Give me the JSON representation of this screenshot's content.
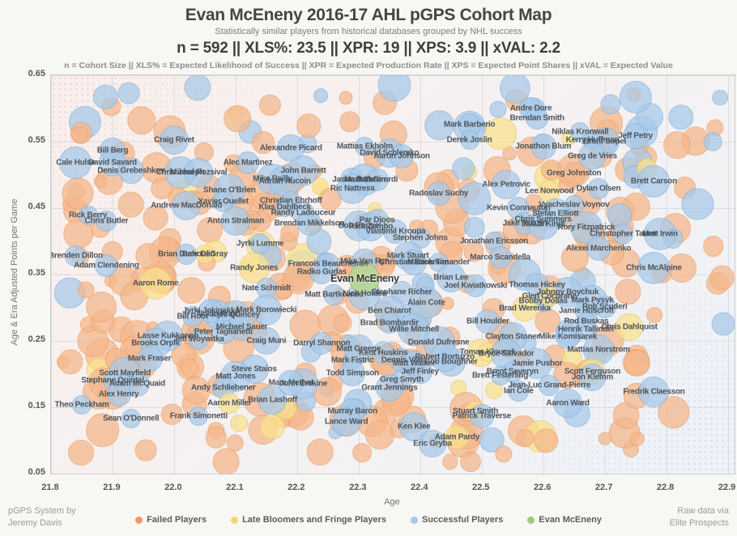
{
  "header": {
    "title": "Evan McEneny 2016-17 AHL pGPS Cohort Map",
    "subtitle": "Statistically similar players from historical databases grouped by NHL success",
    "stats_line": "n = 592   ||   XLS%: 23.5   ||   XPR: 19   ||   XPS: 3.9   ||   xVAL: 2.2",
    "definitions_line": "n = Cohort Size || XLS% = Expected Likelihood of Success || XPR = Expected Production Rate || XPS = Expected Point Shares || xVAL = Expected Value"
  },
  "footer": {
    "credit_left_line1": "pGPS System by",
    "credit_left_line2": "Jeremy Davis",
    "credit_right_line1": "Raw data via",
    "credit_right_line2": "Elite Prospects"
  },
  "legend": {
    "position": "bottom",
    "items": [
      {
        "label": "Failed Players",
        "color": "#f0976b",
        "group": "f"
      },
      {
        "label": "Late Bloomers and Fringe Players",
        "color": "#f2d578",
        "group": "l"
      },
      {
        "label": "Successful Players",
        "color": "#a9cae9",
        "group": "s"
      },
      {
        "label": "Evan McEneny",
        "color": "#9fc87c",
        "group": "e"
      }
    ]
  },
  "colors": {
    "page-bg": "#f7f7f4",
    "plot-border": "#cccccc",
    "grid-c": "#dcdcdc",
    "failed-fill": "#f5b88d",
    "failed-edge": "#eca267",
    "late-fill": "#fae290",
    "late-edge": "#ecca62",
    "success-fill": "#a9cae9",
    "success-edge": "#88b3da",
    "subject-fill": "#b7d795",
    "subject-edge": "#94bf6d",
    "label-c": "#4e555b",
    "title-c": "#454545",
    "subtitle-c": "#7d7d7d",
    "stats-c": "#3e3e3e",
    "defs-c": "#8d8d8d",
    "tick-c": "#555555",
    "axis-title-c": "#757575",
    "credit-c": "#9b9b9b",
    "legend-text-c": "#5b5b5b"
  },
  "chart_data": {
    "type": "scatter",
    "title": "Evan McEneny 2016-17 AHL pGPS Cohort Map",
    "xlabel": "Age",
    "ylabel": "Age & Era Adjusted Points per Game",
    "xlim": [
      21.8,
      22.9
    ],
    "ylim": [
      0.05,
      0.65
    ],
    "x_ticks": [
      "21.8",
      "21.9",
      "22.0",
      "22.1",
      "22.2",
      "22.3",
      "22.4",
      "22.5",
      "22.6",
      "22.7",
      "22.8",
      "22.9"
    ],
    "y_ticks": [
      "0.65",
      "0.55",
      "0.45",
      "0.35",
      "0.25",
      "0.15",
      "0.05"
    ],
    "grid": true,
    "cohort_size": 592,
    "subject": {
      "n": "Evan McEneny",
      "a": 22.31,
      "p": 0.344,
      "g": "e"
    },
    "background": {
      "seed": 1337,
      "count": 330
    },
    "players": [
      {
        "n": "Craig Rivet",
        "a": 22.0,
        "p": 0.552,
        "g": "s"
      },
      {
        "n": "Bill Berg",
        "a": 21.9,
        "p": 0.537,
        "g": "s"
      },
      {
        "n": "Cale Hulse",
        "a": 21.84,
        "p": 0.518,
        "g": "s"
      },
      {
        "n": "David Savard",
        "a": 21.9,
        "p": 0.518,
        "g": "s"
      },
      {
        "n": "Denis Grebeshkov",
        "a": 21.93,
        "p": 0.506,
        "g": "s"
      },
      {
        "n": "Chris Joseph",
        "a": 22.01,
        "p": 0.504,
        "g": "s"
      },
      {
        "n": "Michal Rozsival",
        "a": 22.04,
        "p": 0.504,
        "g": "s"
      },
      {
        "n": "Shane O'Brien",
        "a": 22.09,
        "p": 0.477,
        "g": "s"
      },
      {
        "n": "Andrew MacDonald",
        "a": 22.02,
        "p": 0.454,
        "g": "s"
      },
      {
        "n": "Alec Martinez",
        "a": 22.12,
        "p": 0.518,
        "g": "s"
      },
      {
        "n": "Alexandre Picard",
        "a": 22.19,
        "p": 0.54,
        "g": "s"
      },
      {
        "n": "Mattias Ekholm",
        "a": 22.31,
        "p": 0.543,
        "g": "s"
      },
      {
        "n": "David Schlemko",
        "a": 22.35,
        "p": 0.533,
        "g": "s"
      },
      {
        "n": "Aaron Johnson",
        "a": 22.37,
        "p": 0.528,
        "g": "s"
      },
      {
        "n": "Mark Barberio",
        "a": 22.48,
        "p": 0.576,
        "g": "s"
      },
      {
        "n": "Derek Joslin",
        "a": 22.48,
        "p": 0.552,
        "g": "s"
      },
      {
        "n": "John Barrett",
        "a": 22.21,
        "p": 0.506,
        "g": "s"
      },
      {
        "n": "Mike Reilly",
        "a": 22.16,
        "p": 0.494,
        "g": "s"
      },
      {
        "n": "Adrian Aucoin",
        "a": 22.18,
        "p": 0.49,
        "g": "s"
      },
      {
        "n": "Jason York",
        "a": 22.29,
        "p": 0.493,
        "g": "s"
      },
      {
        "n": "Mark Eaton",
        "a": 22.31,
        "p": 0.493,
        "g": "s"
      },
      {
        "n": "Dan Girardi",
        "a": 22.33,
        "p": 0.493,
        "g": "s"
      },
      {
        "n": "Ric Nattress",
        "a": 22.29,
        "p": 0.479,
        "g": "s"
      },
      {
        "n": "Radoslav Suchy",
        "a": 22.43,
        "p": 0.472,
        "g": "s"
      },
      {
        "n": "Christian Ehrhoff",
        "a": 22.19,
        "p": 0.461,
        "g": "s"
      },
      {
        "n": "Klas Dahlbeck",
        "a": 22.18,
        "p": 0.451,
        "g": "s"
      },
      {
        "n": "Xavier Ouellet",
        "a": 22.08,
        "p": 0.46,
        "g": "s"
      },
      {
        "n": "Niklas Kronwall",
        "a": 22.66,
        "p": 0.565,
        "g": "s"
      },
      {
        "n": "Jeff Petry",
        "a": 22.75,
        "p": 0.559,
        "g": "s"
      },
      {
        "n": "Kerry Huffman",
        "a": 22.68,
        "p": 0.552,
        "g": "s"
      },
      {
        "n": "Brent Sopel",
        "a": 22.7,
        "p": 0.55,
        "g": "s"
      },
      {
        "n": "Jonathon Blum",
        "a": 22.6,
        "p": 0.543,
        "g": "s"
      },
      {
        "n": "Greg de Vries",
        "a": 22.68,
        "p": 0.528,
        "g": "s"
      },
      {
        "n": "Greg Johnston",
        "a": 22.65,
        "p": 0.502,
        "g": "f"
      },
      {
        "n": "Brett Carson",
        "a": 22.78,
        "p": 0.49,
        "g": "s"
      },
      {
        "n": "Alex Petrovic",
        "a": 22.54,
        "p": 0.485,
        "g": "s"
      },
      {
        "n": "Lee Norwood",
        "a": 22.61,
        "p": 0.476,
        "g": "l"
      },
      {
        "n": "Dylan Olsen",
        "a": 22.69,
        "p": 0.479,
        "g": "s"
      },
      {
        "n": "Vyacheslav Voynov",
        "a": 22.65,
        "p": 0.455,
        "g": "s"
      },
      {
        "n": "Kevin Connauton",
        "a": 22.56,
        "p": 0.45,
        "g": "s"
      },
      {
        "n": "Andre Dore",
        "a": 22.58,
        "p": 0.6,
        "g": "s"
      },
      {
        "n": "Brendan Smith",
        "a": 22.59,
        "p": 0.585,
        "g": "s"
      },
      {
        "n": "Stefan Elliott",
        "a": 22.62,
        "p": 0.441,
        "g": "s"
      },
      {
        "n": "Chris Summers",
        "a": 22.6,
        "p": 0.433,
        "g": "s"
      },
      {
        "n": "Jake Muzzin",
        "a": 22.57,
        "p": 0.427,
        "g": "s"
      },
      {
        "n": "Jakub Kindl",
        "a": 22.6,
        "p": 0.426,
        "g": "s"
      },
      {
        "n": "Rory Fitzpatrick",
        "a": 22.67,
        "p": 0.421,
        "g": "s"
      },
      {
        "n": "Christopher Tanev",
        "a": 22.73,
        "p": 0.411,
        "g": "s"
      },
      {
        "n": "Matt Irwin",
        "a": 22.79,
        "p": 0.411,
        "g": "s"
      },
      {
        "n": "Alexei Marchenko",
        "a": 22.69,
        "p": 0.389,
        "g": "s"
      },
      {
        "n": "Chris McAlpine",
        "a": 22.78,
        "p": 0.36,
        "g": "s"
      },
      {
        "n": "Jonathan Ericsson",
        "a": 22.52,
        "p": 0.4,
        "g": "s"
      },
      {
        "n": "Marco Scandella",
        "a": 22.53,
        "p": 0.376,
        "g": "s"
      },
      {
        "n": "Rick Berry",
        "a": 21.86,
        "p": 0.439,
        "g": "s"
      },
      {
        "n": "Chris Butler",
        "a": 21.89,
        "p": 0.43,
        "g": "s"
      },
      {
        "n": "Anton Stralman",
        "a": 22.1,
        "p": 0.43,
        "g": "s"
      },
      {
        "n": "Jyrki Lumme",
        "a": 22.14,
        "p": 0.396,
        "g": "s"
      },
      {
        "n": "Brenden Dillon",
        "a": 21.84,
        "p": 0.378,
        "g": "s"
      },
      {
        "n": "Adam Clendening",
        "a": 21.89,
        "p": 0.363,
        "g": "s"
      },
      {
        "n": "Brian Dumoulin",
        "a": 22.02,
        "p": 0.38,
        "g": "s"
      },
      {
        "n": "Dale DeGray",
        "a": 22.05,
        "p": 0.38,
        "g": "l"
      },
      {
        "n": "Aaron Rome",
        "a": 21.97,
        "p": 0.337,
        "g": "l"
      },
      {
        "n": "Randy Jones",
        "a": 22.13,
        "p": 0.36,
        "g": "l"
      },
      {
        "n": "Nate Schmidt",
        "a": 22.15,
        "p": 0.329,
        "g": "s"
      },
      {
        "n": "Randy Ladouceur",
        "a": 22.21,
        "p": 0.443,
        "g": "s"
      },
      {
        "n": "Brendan Mikkelson",
        "a": 22.22,
        "p": 0.427,
        "g": "s"
      },
      {
        "n": "Bob Rouse",
        "a": 22.3,
        "p": 0.423,
        "g": "s"
      },
      {
        "n": "Rick Zombo",
        "a": 22.32,
        "p": 0.422,
        "g": "s"
      },
      {
        "n": "Par Djoos",
        "a": 22.33,
        "p": 0.432,
        "g": "s"
      },
      {
        "n": "Vlastimil Kroupa",
        "a": 22.36,
        "p": 0.415,
        "g": "s"
      },
      {
        "n": "Stephen Johns",
        "a": 22.4,
        "p": 0.405,
        "g": "s"
      },
      {
        "n": "Mark Stuart",
        "a": 22.38,
        "p": 0.378,
        "g": "s"
      },
      {
        "n": "Christian Backman",
        "a": 22.39,
        "p": 0.368,
        "g": "s"
      },
      {
        "n": "Mattias Timander",
        "a": 22.43,
        "p": 0.368,
        "g": "s"
      },
      {
        "n": "Mike Van Ryn",
        "a": 22.31,
        "p": 0.369,
        "g": "s"
      },
      {
        "n": "Francois Beauchemin",
        "a": 22.25,
        "p": 0.366,
        "g": "s"
      },
      {
        "n": "Radko Gudas",
        "a": 22.24,
        "p": 0.354,
        "g": "s"
      },
      {
        "n": "Matt Bartkowski",
        "a": 22.26,
        "p": 0.32,
        "g": "s"
      },
      {
        "n": "Nick Holden",
        "a": 22.31,
        "p": 0.321,
        "g": "s"
      },
      {
        "n": "Stephane Richer",
        "a": 22.37,
        "p": 0.323,
        "g": "s"
      },
      {
        "n": "Alain Cote",
        "a": 22.41,
        "p": 0.307,
        "g": "s"
      },
      {
        "n": "Ben Chiarot",
        "a": 22.35,
        "p": 0.295,
        "g": "s"
      },
      {
        "n": "Brad Bombardir",
        "a": 22.35,
        "p": 0.277,
        "g": "s"
      },
      {
        "n": "Willie Mitchell",
        "a": 22.39,
        "p": 0.267,
        "g": "s"
      },
      {
        "n": "Brian Lee",
        "a": 22.45,
        "p": 0.345,
        "g": "s"
      },
      {
        "n": "Joel Kwiatkowski",
        "a": 22.49,
        "p": 0.333,
        "g": "s"
      },
      {
        "n": "Thomas Hickey",
        "a": 22.59,
        "p": 0.334,
        "g": "s"
      },
      {
        "n": "Johnny Boychuk",
        "a": 22.64,
        "p": 0.323,
        "g": "s"
      },
      {
        "n": "Bobby Dollas",
        "a": 22.6,
        "p": 0.31,
        "g": "s"
      },
      {
        "n": "Glen Cochrane",
        "a": 22.61,
        "p": 0.317,
        "g": "l"
      },
      {
        "n": "Mark Pysyk",
        "a": 22.68,
        "p": 0.311,
        "g": "s"
      },
      {
        "n": "Brad Werenka",
        "a": 22.57,
        "p": 0.299,
        "g": "l"
      },
      {
        "n": "Jamie Huscroft",
        "a": 22.67,
        "p": 0.295,
        "g": "s"
      },
      {
        "n": "Rob Scuderi",
        "a": 22.7,
        "p": 0.301,
        "g": "s"
      },
      {
        "n": "Bill Houlder",
        "a": 22.51,
        "p": 0.279,
        "g": "s"
      },
      {
        "n": "Rod Buskas",
        "a": 22.67,
        "p": 0.279,
        "g": "s"
      },
      {
        "n": "Henrik Tallinder",
        "a": 22.67,
        "p": 0.267,
        "g": "s"
      },
      {
        "n": "Chris Dahlquist",
        "a": 22.74,
        "p": 0.271,
        "g": "l"
      },
      {
        "n": "Clayton Stoner",
        "a": 22.55,
        "p": 0.256,
        "g": "s"
      },
      {
        "n": "Mike Komisarek",
        "a": 22.64,
        "p": 0.256,
        "g": "s"
      },
      {
        "n": "Mattias Norstrom",
        "a": 22.69,
        "p": 0.237,
        "g": "s"
      },
      {
        "n": "Tomas Kloucek",
        "a": 22.51,
        "p": 0.233,
        "g": "l"
      },
      {
        "n": "Bryce Salvador",
        "a": 22.54,
        "p": 0.23,
        "g": "s"
      },
      {
        "n": "Jamie Pushor",
        "a": 22.59,
        "p": 0.216,
        "g": "s"
      },
      {
        "n": "Brent Severyn",
        "a": 22.55,
        "p": 0.204,
        "g": "s"
      },
      {
        "n": "Brett Festerling",
        "a": 22.53,
        "p": 0.197,
        "g": "s"
      },
      {
        "n": "Scott Ferguson",
        "a": 22.68,
        "p": 0.204,
        "g": "l"
      },
      {
        "n": "Jon Klemm",
        "a": 22.68,
        "p": 0.195,
        "g": "s"
      },
      {
        "n": "Jean-Luc Grand-Pierre",
        "a": 22.61,
        "p": 0.183,
        "g": "s"
      },
      {
        "n": "Ian Cole",
        "a": 22.56,
        "p": 0.174,
        "g": "s"
      },
      {
        "n": "Aaron Ward",
        "a": 22.64,
        "p": 0.156,
        "g": "s"
      },
      {
        "n": "Fredrik Claesson",
        "a": 22.78,
        "p": 0.173,
        "g": "s"
      },
      {
        "n": "Bill Root",
        "a": 22.03,
        "p": 0.287,
        "g": "s"
      },
      {
        "n": "Nolan Pratt",
        "a": 22.07,
        "p": 0.29,
        "g": "s"
      },
      {
        "n": "Kyle Quincey",
        "a": 22.1,
        "p": 0.289,
        "g": "s"
      },
      {
        "n": "Jyrki Jokipakka",
        "a": 22.06,
        "p": 0.295,
        "g": "s"
      },
      {
        "n": "Mark Borowiecki",
        "a": 22.15,
        "p": 0.296,
        "g": "s"
      },
      {
        "n": "Michael Sauer",
        "a": 22.11,
        "p": 0.271,
        "g": "s"
      },
      {
        "n": "Peter Taglianetti",
        "a": 22.08,
        "p": 0.263,
        "g": "s"
      },
      {
        "n": "Lasse Kukkonen",
        "a": 21.99,
        "p": 0.257,
        "g": "s"
      },
      {
        "n": "Jeff Woywitka",
        "a": 22.04,
        "p": 0.252,
        "g": "s"
      },
      {
        "n": "Brooks Orpik",
        "a": 21.97,
        "p": 0.246,
        "g": "s"
      },
      {
        "n": "Craig Muni",
        "a": 22.15,
        "p": 0.25,
        "g": "s"
      },
      {
        "n": "Darryl Shannon",
        "a": 22.24,
        "p": 0.246,
        "g": "s"
      },
      {
        "n": "Mark Fraser",
        "a": 21.96,
        "p": 0.223,
        "g": "s"
      },
      {
        "n": "Scott Mayfield",
        "a": 21.92,
        "p": 0.201,
        "g": "s"
      },
      {
        "n": "Stephane Quintal",
        "a": 21.9,
        "p": 0.19,
        "g": "s"
      },
      {
        "n": "Adam McQuaid",
        "a": 21.94,
        "p": 0.185,
        "g": "s"
      },
      {
        "n": "Alex Henry",
        "a": 21.91,
        "p": 0.17,
        "g": "s"
      },
      {
        "n": "Theo Peckham",
        "a": 21.85,
        "p": 0.154,
        "g": "s"
      },
      {
        "n": "Sean O'Donnell",
        "a": 21.93,
        "p": 0.133,
        "g": "s"
      },
      {
        "n": "Frank Simonetti",
        "a": 22.04,
        "p": 0.137,
        "g": "s"
      },
      {
        "n": "Steve Staios",
        "a": 22.13,
        "p": 0.207,
        "g": "s"
      },
      {
        "n": "Matt Jones",
        "a": 22.1,
        "p": 0.196,
        "g": "s"
      },
      {
        "n": "Andy Schliebener",
        "a": 22.08,
        "p": 0.179,
        "g": "s"
      },
      {
        "n": "Aaron Miller",
        "a": 22.09,
        "p": 0.156,
        "g": "l"
      },
      {
        "n": "Brian Lashoff",
        "a": 22.16,
        "p": 0.161,
        "g": "s"
      },
      {
        "n": "John Erskine",
        "a": 22.21,
        "p": 0.185,
        "g": "s"
      },
      {
        "n": "Marc Methot",
        "a": 22.19,
        "p": 0.187,
        "g": "s"
      },
      {
        "n": "Mark Fistric",
        "a": 22.29,
        "p": 0.221,
        "g": "s"
      },
      {
        "n": "Todd Simpson",
        "a": 22.29,
        "p": 0.201,
        "g": "s"
      },
      {
        "n": "Matt Greene",
        "a": 22.3,
        "p": 0.238,
        "g": "s"
      },
      {
        "n": "Kent Huskins",
        "a": 22.34,
        "p": 0.232,
        "g": "s"
      },
      {
        "n": "Donald Dufresne",
        "a": 22.43,
        "p": 0.248,
        "g": "s"
      },
      {
        "n": "Dennis Vial",
        "a": 22.37,
        "p": 0.221,
        "g": "s"
      },
      {
        "n": "Matt Walker",
        "a": 22.39,
        "p": 0.216,
        "g": "s"
      },
      {
        "n": "Bob Boughner",
        "a": 22.45,
        "p": 0.218,
        "g": "s"
      },
      {
        "n": "Robert Bortuzzo",
        "a": 22.44,
        "p": 0.226,
        "g": "s"
      },
      {
        "n": "Jeff Finley",
        "a": 22.4,
        "p": 0.204,
        "g": "s"
      },
      {
        "n": "Greg Smyth",
        "a": 22.37,
        "p": 0.191,
        "g": "s"
      },
      {
        "n": "Grant Jennings",
        "a": 22.35,
        "p": 0.179,
        "g": "s"
      },
      {
        "n": "Murray Baron",
        "a": 22.29,
        "p": 0.144,
        "g": "s"
      },
      {
        "n": "Lance Ward",
        "a": 22.28,
        "p": 0.128,
        "g": "s"
      },
      {
        "n": "Ken Klee",
        "a": 22.39,
        "p": 0.121,
        "g": "s"
      },
      {
        "n": "Eric Gryba",
        "a": 22.42,
        "p": 0.095,
        "g": "s"
      },
      {
        "n": "Adam Pardy",
        "a": 22.46,
        "p": 0.105,
        "g": "l"
      },
      {
        "n": "Stuart Smith",
        "a": 22.49,
        "p": 0.144,
        "g": "l"
      },
      {
        "n": "Patrick Traverse",
        "a": 22.5,
        "p": 0.137,
        "g": "s"
      }
    ]
  }
}
